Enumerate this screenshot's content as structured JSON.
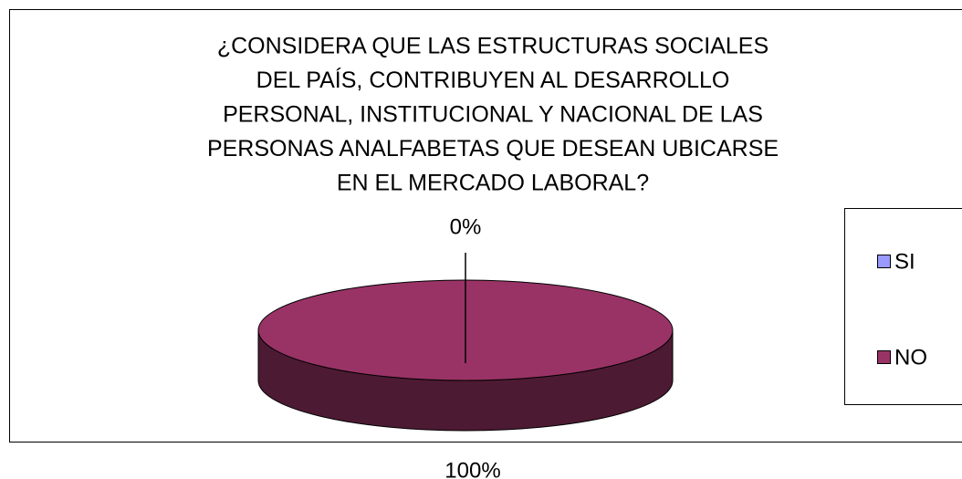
{
  "chart_data": {
    "type": "pie3d",
    "title": [
      "¿CONSIDERA QUE LAS ESTRUCTURAS SOCIALES",
      "DEL PAÍS, CONTRIBUYEN AL DESARROLLO",
      "PERSONAL, INSTITUCIONAL Y NACIONAL DE LAS",
      "PERSONAS ANALFABETAS QUE DESEAN UBICARSE",
      "EN EL MERCADO LABORAL?"
    ],
    "categories": [
      "SI",
      "NO"
    ],
    "values": [
      0,
      100
    ],
    "value_labels": [
      "0%",
      "100%"
    ],
    "colors": [
      "#9999ff",
      "#993366"
    ],
    "legend": "right"
  }
}
